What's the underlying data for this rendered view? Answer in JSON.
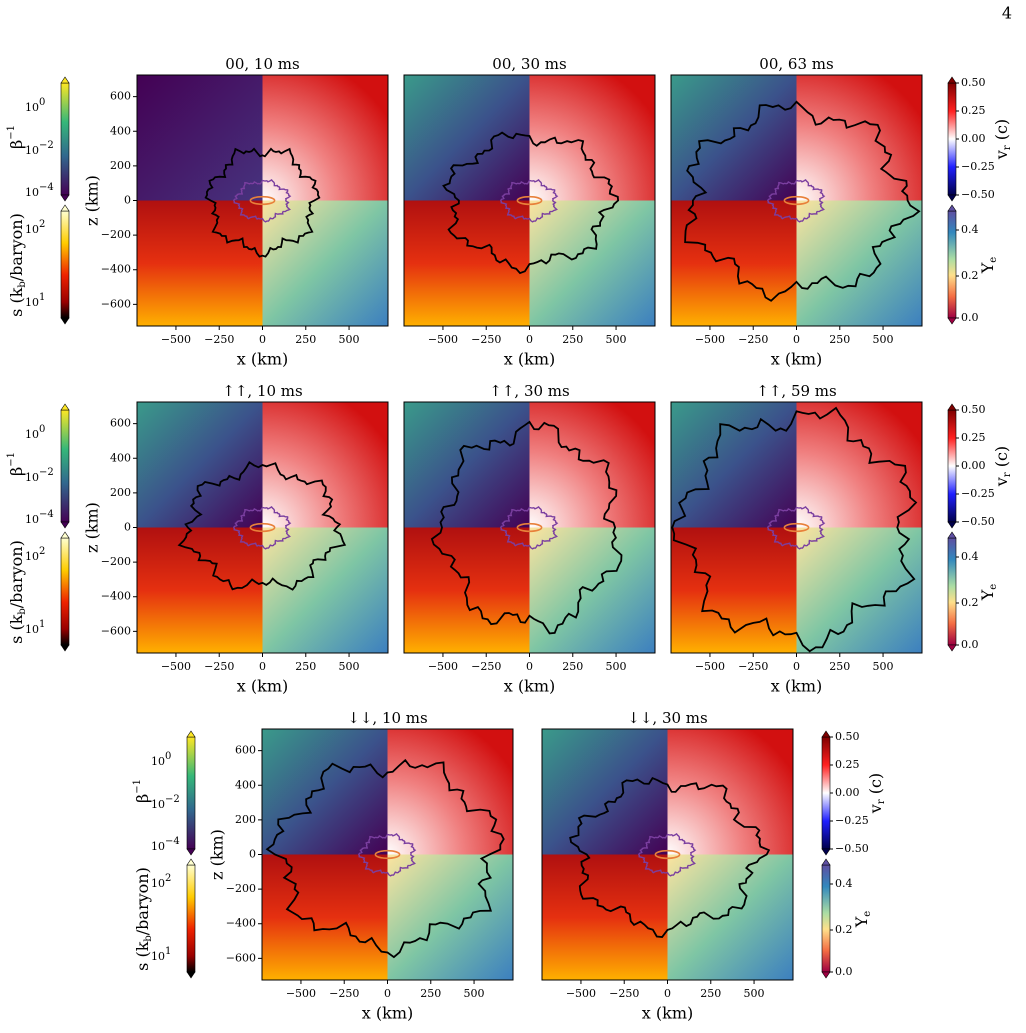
{
  "page_number": "4",
  "x_label": "x (km)",
  "z_label": "z (km)",
  "x_ticks": [
    "−500",
    "−250",
    "0",
    "250",
    "500"
  ],
  "z_ticks": [
    "600",
    "400",
    "200",
    "0",
    "−200",
    "−400",
    "−600"
  ],
  "colorbars": {
    "beta": {
      "label": [
        "β",
        "−1"
      ],
      "ticks": [
        {
          "base": "10",
          "exp": "0"
        },
        {
          "base": "10",
          "exp": "−2"
        },
        {
          "base": "10",
          "exp": "−4"
        }
      ]
    },
    "entropy": {
      "label": [
        "s (k",
        "b",
        "/baryon)"
      ],
      "ticks": [
        {
          "base": "10",
          "exp": "2"
        },
        {
          "base": "10",
          "exp": "1"
        }
      ]
    },
    "v_r": {
      "label": [
        "v",
        "r",
        " (c)"
      ],
      "ticks": [
        "0.50",
        "0.25",
        "0.00",
        "−0.25",
        "−0.50"
      ]
    },
    "Y_e": {
      "label": [
        "Y",
        "e"
      ],
      "ticks": [
        "0.4",
        "0.2",
        "0.0"
      ]
    }
  },
  "rows": [
    {
      "panels": [
        {
          "title": "00, 10 ms"
        },
        {
          "title": "00, 30 ms"
        },
        {
          "title": "00, 63 ms"
        }
      ]
    },
    {
      "panels": [
        {
          "title": "↑↑, 10 ms"
        },
        {
          "title": "↑↑, 30 ms"
        },
        {
          "title": "↑↑, 59 ms"
        }
      ]
    },
    {
      "panels": [
        {
          "title": "↓↓, 10 ms"
        },
        {
          "title": "↓↓, 30 ms"
        }
      ]
    }
  ]
}
